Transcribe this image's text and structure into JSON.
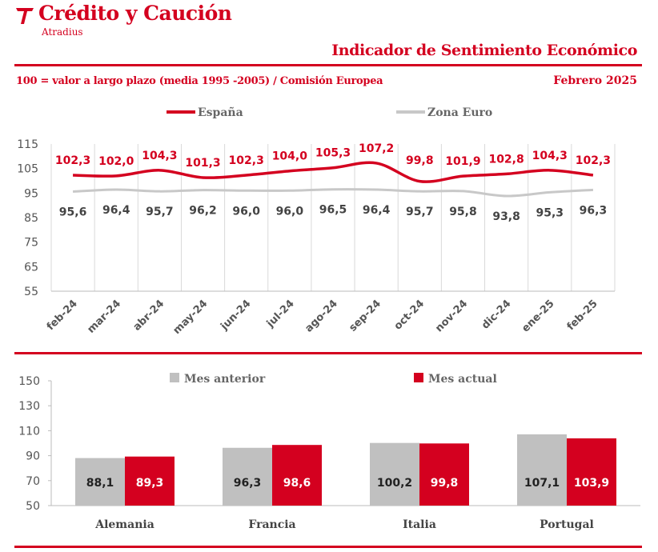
{
  "brand": {
    "name": "Crédito y Caución",
    "sub": "Atradius",
    "color": "#d4001f"
  },
  "header": {
    "title": "Indicador de Sentimiento Económico",
    "subtitle": "100 = valor a largo plazo (media 1995 -2005) / Comisión Europea",
    "date": "Febrero 2025"
  },
  "chart_data": [
    {
      "type": "line",
      "x": [
        "feb-24",
        "mar-24",
        "abr-24",
        "may-24",
        "jun-24",
        "jul-24",
        "ago-24",
        "sep-24",
        "oct-24",
        "nov-24",
        "dic-24",
        "ene-25",
        "feb-25"
      ],
      "ylim": [
        55,
        115
      ],
      "yticks": [
        55,
        65,
        75,
        85,
        95,
        105,
        115
      ],
      "grid": "vertical",
      "legend": "top",
      "series": [
        {
          "name": "España",
          "color": "#d4001f",
          "labels": [
            "102,3",
            "102,0",
            "104,3",
            "101,3",
            "102,3",
            "104,0",
            "105,3",
            "107,2",
            "99,8",
            "101,9",
            "102,8",
            "104,3",
            "102,3"
          ],
          "values": [
            102.3,
            102.0,
            104.3,
            101.3,
            102.3,
            104.0,
            105.3,
            107.2,
            99.8,
            101.9,
            102.8,
            104.3,
            102.3
          ]
        },
        {
          "name": "Zona Euro",
          "color": "#c8c8c8",
          "labels": [
            "95,6",
            "96,4",
            "95,7",
            "96,2",
            "96,0",
            "96,0",
            "96,5",
            "96,4",
            "95,7",
            "95,8",
            "93,8",
            "95,3",
            "96,3"
          ],
          "values": [
            95.6,
            96.4,
            95.7,
            96.2,
            96.0,
            96.0,
            96.5,
            96.4,
            95.7,
            95.8,
            93.8,
            95.3,
            96.3
          ]
        }
      ]
    },
    {
      "type": "bar",
      "categories": [
        "Alemania",
        "Francia",
        "Italia",
        "Portugal"
      ],
      "ylim": [
        50,
        150
      ],
      "yticks": [
        50,
        70,
        90,
        110,
        130,
        150
      ],
      "legend": "top",
      "series": [
        {
          "name": "Mes anterior",
          "color": "#c0c0c0",
          "labels": [
            "88,1",
            "96,3",
            "100,2",
            "107,1"
          ],
          "values": [
            88.1,
            96.3,
            100.2,
            107.1
          ]
        },
        {
          "name": "Mes actual",
          "color": "#d4001f",
          "labels": [
            "89,3",
            "98,6",
            "99,8",
            "103,9"
          ],
          "values": [
            89.3,
            98.6,
            99.8,
            103.9
          ]
        }
      ]
    }
  ]
}
